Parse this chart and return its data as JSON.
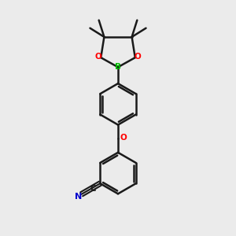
{
  "bg_color": "#ebebeb",
  "bond_color": "#1a1a1a",
  "O_color": "#ff0000",
  "B_color": "#00bb00",
  "N_color": "#0000cc",
  "lw": 1.8,
  "figsize": [
    3.0,
    3.0
  ],
  "dpi": 100,
  "xlim": [
    0.15,
    0.85
  ],
  "ylim": [
    0.05,
    0.97
  ]
}
